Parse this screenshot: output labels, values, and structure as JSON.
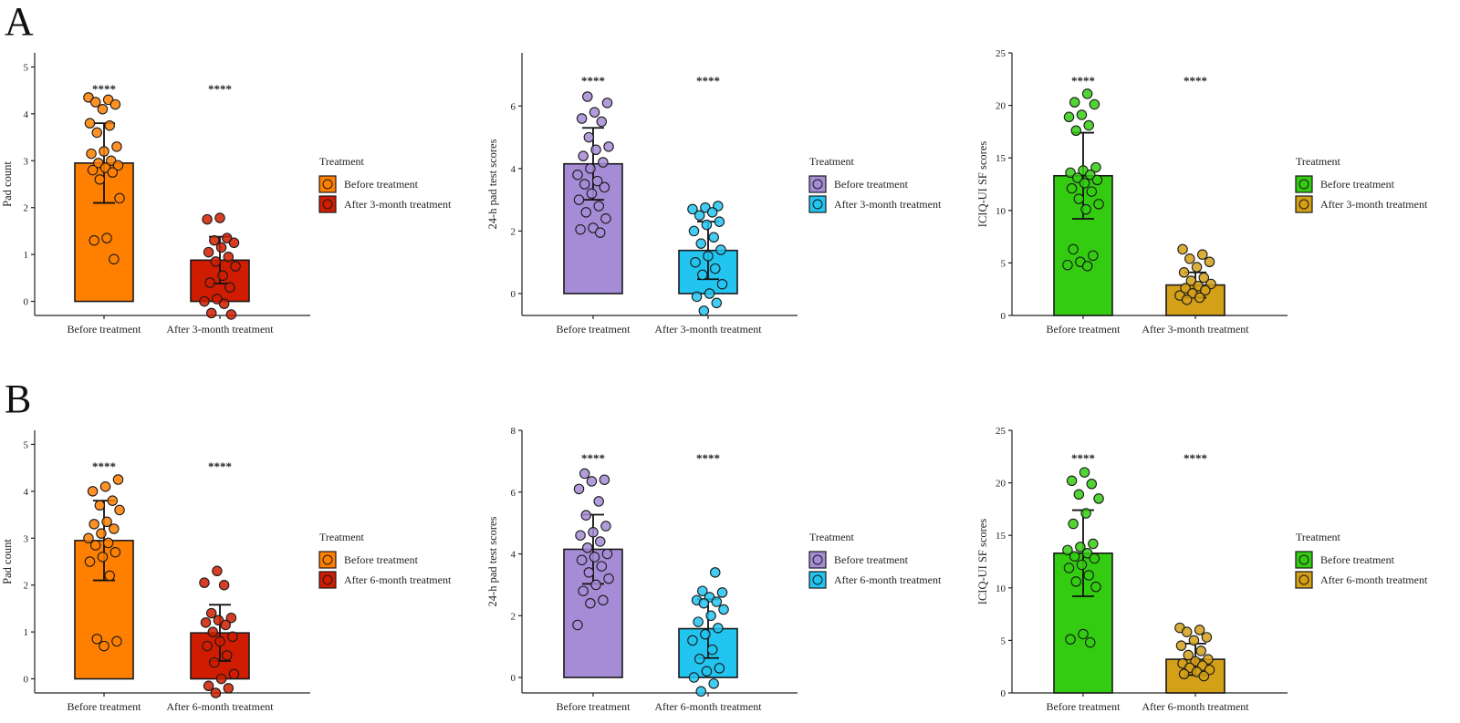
{
  "panel_labels": [
    "A",
    "B"
  ],
  "legend_title": "Treatment",
  "significance": "****",
  "chart_data": [
    {
      "type": "bar",
      "panel": "A",
      "ylabel": "Pad count",
      "ylim": [
        -0.3,
        5.3
      ],
      "yticks": [
        0,
        1,
        2,
        3,
        4,
        5
      ],
      "categories": [
        "Before treatment",
        "After 3-month treatment"
      ],
      "values": [
        2.95,
        0.88
      ],
      "sd": [
        0.85,
        0.5
      ],
      "colors": [
        "#ff7f00",
        "#d01c00"
      ],
      "points": [
        [
          4.35,
          4.3,
          4.25,
          4.2,
          4.1,
          3.8,
          3.75,
          3.6,
          3.3,
          3.2,
          3.15,
          3.0,
          2.95,
          2.9,
          2.85,
          2.8,
          2.75,
          2.6,
          2.2,
          1.35,
          1.3,
          0.9
        ],
        [
          1.78,
          1.75,
          1.35,
          1.3,
          1.25,
          1.15,
          1.05,
          0.95,
          0.85,
          0.75,
          0.55,
          0.4,
          0.3,
          0.05,
          0.0,
          -0.05,
          -0.25,
          -0.28
        ]
      ],
      "legend": [
        "Before treatment",
        "After 3-month treatment"
      ]
    },
    {
      "type": "bar",
      "panel": "A",
      "ylabel": "24-h pad test scores",
      "ylim": [
        -0.7,
        7.7
      ],
      "yticks": [
        0,
        2,
        4,
        6
      ],
      "categories": [
        "Before treatment",
        "After 3-month treatment"
      ],
      "values": [
        4.15,
        1.38
      ],
      "sd": [
        1.15,
        0.92
      ],
      "colors": [
        "#a68bd6",
        "#22c4f0"
      ],
      "points": [
        [
          6.3,
          6.1,
          5.8,
          5.6,
          5.5,
          5.0,
          4.7,
          4.6,
          4.4,
          4.2,
          4.0,
          3.8,
          3.6,
          3.5,
          3.4,
          3.2,
          3.0,
          2.8,
          2.6,
          2.4,
          2.1,
          2.05,
          1.95
        ],
        [
          2.8,
          2.75,
          2.7,
          2.6,
          2.5,
          2.3,
          2.2,
          2.0,
          1.8,
          1.6,
          1.4,
          1.2,
          1.0,
          0.8,
          0.6,
          0.3,
          0.0,
          -0.1,
          -0.3,
          -0.55
        ]
      ],
      "legend": [
        "Before treatment",
        "After 3-month treatment"
      ]
    },
    {
      "type": "bar",
      "panel": "A",
      "ylabel": "ICIQ-UI SF scores",
      "ylim": [
        0,
        25
      ],
      "yticks": [
        0,
        5,
        10,
        15,
        20,
        25
      ],
      "categories": [
        "Before treatment",
        "After 3-month treatment"
      ],
      "values": [
        13.3,
        2.9
      ],
      "sd": [
        4.1,
        1.2
      ],
      "colors": [
        "#33cc11",
        "#d4a017"
      ],
      "points": [
        [
          21.1,
          20.3,
          20.1,
          19.1,
          18.9,
          18.1,
          17.6,
          14.1,
          13.8,
          13.6,
          13.4,
          13.1,
          12.9,
          12.6,
          12.1,
          11.8,
          11.1,
          10.6,
          10.1,
          6.3,
          5.7,
          5.1,
          4.8,
          4.7
        ],
        [
          6.3,
          5.8,
          5.4,
          5.1,
          4.6,
          4.1,
          3.6,
          3.3,
          3.0,
          2.8,
          2.6,
          2.4,
          2.1,
          1.9,
          1.7,
          1.5
        ]
      ],
      "legend": [
        "Before treatment",
        "After 3-month treatment"
      ]
    },
    {
      "type": "bar",
      "panel": "B",
      "ylabel": "Pad count",
      "ylim": [
        -0.3,
        5.3
      ],
      "yticks": [
        0,
        1,
        2,
        3,
        4,
        5
      ],
      "categories": [
        "Before treatment",
        "After 6-month treatment"
      ],
      "values": [
        2.95,
        0.98
      ],
      "sd": [
        0.85,
        0.6
      ],
      "colors": [
        "#ff7f00",
        "#d01c00"
      ],
      "points": [
        [
          4.25,
          4.1,
          4.0,
          3.8,
          3.7,
          3.6,
          3.35,
          3.3,
          3.2,
          3.1,
          3.0,
          2.9,
          2.85,
          2.7,
          2.6,
          2.5,
          2.2,
          0.85,
          0.8,
          0.7
        ],
        [
          2.3,
          2.05,
          2.0,
          1.4,
          1.3,
          1.25,
          1.2,
          1.15,
          1.0,
          0.9,
          0.8,
          0.7,
          0.5,
          0.35,
          0.1,
          0.0,
          -0.15,
          -0.2,
          -0.3
        ]
      ],
      "legend": [
        "Before treatment",
        "After 6-month treatment"
      ]
    },
    {
      "type": "bar",
      "panel": "B",
      "ylabel": "24-h pad test scores",
      "ylim": [
        -0.5,
        8
      ],
      "yticks": [
        0,
        2,
        4,
        6,
        8
      ],
      "categories": [
        "Before treatment",
        "After 6-month treatment"
      ],
      "values": [
        4.15,
        1.58
      ],
      "sd": [
        1.12,
        0.95
      ],
      "colors": [
        "#a68bd6",
        "#22c4f0"
      ],
      "points": [
        [
          6.6,
          6.4,
          6.35,
          6.1,
          5.7,
          5.25,
          4.9,
          4.7,
          4.6,
          4.4,
          4.2,
          4.0,
          3.9,
          3.8,
          3.6,
          3.4,
          3.2,
          3.0,
          2.8,
          2.5,
          2.4,
          1.7
        ],
        [
          3.4,
          2.8,
          2.75,
          2.6,
          2.5,
          2.45,
          2.4,
          2.2,
          2.0,
          1.8,
          1.6,
          1.4,
          1.2,
          0.9,
          0.6,
          0.3,
          0.2,
          0.0,
          -0.2,
          -0.45
        ]
      ],
      "legend": [
        "Before treatment",
        "After 6-month treatment"
      ]
    },
    {
      "type": "bar",
      "panel": "B",
      "ylabel": "ICIQ-UI SF scores",
      "ylim": [
        0,
        25
      ],
      "yticks": [
        0,
        5,
        10,
        15,
        20,
        25
      ],
      "categories": [
        "Before treatment",
        "After 6-month treatment"
      ],
      "values": [
        13.3,
        3.2
      ],
      "sd": [
        4.1,
        1.5
      ],
      "colors": [
        "#33cc11",
        "#d4a017"
      ],
      "points": [
        [
          21.0,
          20.2,
          19.9,
          18.9,
          18.5,
          17.1,
          16.1,
          14.2,
          13.9,
          13.6,
          13.3,
          13.0,
          12.8,
          12.2,
          11.9,
          11.2,
          10.6,
          10.1,
          5.6,
          5.1,
          4.8
        ],
        [
          6.2,
          6.0,
          5.8,
          5.3,
          5.0,
          4.5,
          4.0,
          3.6,
          3.2,
          3.0,
          2.8,
          2.6,
          2.4,
          2.2,
          2.0,
          1.8,
          1.6
        ]
      ],
      "legend": [
        "Before treatment",
        "After 6-month treatment"
      ]
    }
  ]
}
